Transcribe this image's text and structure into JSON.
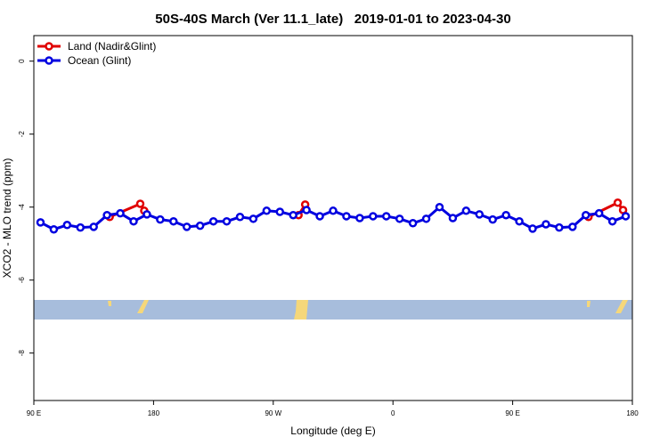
{
  "chart_data": {
    "type": "line",
    "title": "50S-40S March (Ver 11.1_late)   2019-01-01 to 2023-04-30",
    "xlabel": "Longitude (deg E)",
    "ylabel": "XCO2 - MLO trend (ppm)",
    "xlim": [
      90,
      540
    ],
    "ylim": [
      -9.3,
      0.7
    ],
    "xticks": [
      {
        "value": 90,
        "label": "90 E"
      },
      {
        "value": 180,
        "label": "180"
      },
      {
        "value": 270,
        "label": "90 W"
      },
      {
        "value": 360,
        "label": "0"
      },
      {
        "value": 450,
        "label": "90 E"
      },
      {
        "value": 540,
        "label": "180"
      }
    ],
    "yticks": [
      0,
      -2,
      -4,
      -6,
      -8
    ],
    "legend": "top-left",
    "series": [
      {
        "name": "Land (Nadir&Glint)",
        "color": "#e00000",
        "x": [
          147,
          170,
          173,
          null,
          289,
          294,
          null,
          507,
          529,
          533
        ],
        "values": [
          -4.27,
          -3.91,
          -4.1,
          null,
          -4.22,
          -3.93,
          null,
          -4.27,
          -3.88,
          -4.08
        ]
      },
      {
        "name": "Ocean (Glint)",
        "color": "#0000e0",
        "x": [
          95,
          105,
          115,
          125,
          135,
          145,
          155,
          165,
          175,
          185,
          195,
          205,
          215,
          225,
          235,
          245,
          255,
          265,
          275,
          285,
          295,
          305,
          315,
          325,
          335,
          345,
          355,
          365,
          375,
          385,
          395,
          405,
          415,
          425,
          435,
          445,
          455,
          465,
          475,
          485,
          495,
          505,
          515,
          525,
          535
        ],
        "values": [
          -4.42,
          -4.61,
          -4.49,
          -4.56,
          -4.54,
          -4.22,
          -4.17,
          -4.39,
          -4.2,
          -4.34,
          -4.39,
          -4.54,
          -4.51,
          -4.39,
          -4.39,
          -4.27,
          -4.32,
          -4.1,
          -4.13,
          -4.22,
          -4.08,
          -4.25,
          -4.1,
          -4.25,
          -4.3,
          -4.25,
          -4.25,
          -4.32,
          -4.44,
          -4.32,
          -4.0,
          -4.3,
          -4.1,
          -4.2,
          -4.34,
          -4.22,
          -4.39,
          -4.59,
          -4.47,
          -4.56,
          -4.54,
          -4.22,
          -4.17,
          -4.39,
          -4.25
        ]
      }
    ]
  }
}
